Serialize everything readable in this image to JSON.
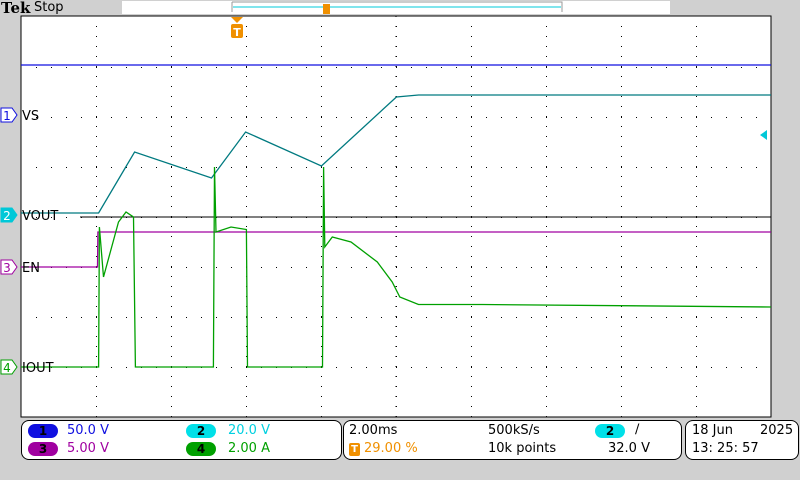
{
  "header": {
    "brand": "Tek",
    "status": "Stop"
  },
  "colors": {
    "ch1": "#1010e0",
    "ch2": "#00c8d8",
    "ch2_trace": "#007a80",
    "ch3": "#a000a0",
    "ch4": "#00a000",
    "trigger": "#f09000"
  },
  "channels": [
    {
      "num": "1",
      "label": "VS",
      "scale": "50.0 V"
    },
    {
      "num": "2",
      "label": "VOUT",
      "scale": "20.0 V"
    },
    {
      "num": "3",
      "label": "EN",
      "scale": "5.00 V"
    },
    {
      "num": "4",
      "label": "IOUT",
      "scale": "2.00 A"
    }
  ],
  "timebase": {
    "scale": "2.00ms",
    "trigger_position": "29.00 %",
    "sample_rate": "500kS/s",
    "record_length": "10k points"
  },
  "trigger": {
    "source": "2",
    "slope_icon": "rising-edge",
    "slope_glyph": "∕",
    "level": "32.0 V",
    "marker": "T"
  },
  "datetime": {
    "date": "18 Jun",
    "year": "2025",
    "time": "13: 25: 57"
  },
  "chart_data": {
    "type": "line",
    "x_unit": "ms",
    "xlim": [
      -5.8,
      14.2
    ],
    "divisions": {
      "horizontal": 10,
      "vertical": 8
    },
    "grid": true,
    "series": [
      {
        "name": "VS",
        "unit": "V",
        "points": [
          [
            -5.8,
            50
          ],
          [
            14.2,
            50
          ]
        ]
      },
      {
        "name": "VOUT",
        "unit": "V",
        "points": [
          [
            -5.8,
            0.8
          ],
          [
            -3.73,
            0.8
          ],
          [
            -2.77,
            25.2
          ],
          [
            -0.72,
            14.8
          ],
          [
            0.19,
            33.2
          ],
          [
            2.21,
            19.6
          ],
          [
            4.21,
            47.2
          ],
          [
            4.8,
            48
          ],
          [
            14.2,
            48
          ]
        ]
      },
      {
        "name": "EN",
        "unit": "V",
        "points": [
          [
            -5.8,
            0
          ],
          [
            -3.76,
            0
          ],
          [
            -3.75,
            3.5
          ],
          [
            14.2,
            3.5
          ]
        ]
      },
      {
        "name": "IOUT",
        "unit": "A",
        "points": [
          [
            -5.8,
            0
          ],
          [
            -3.73,
            0
          ],
          [
            -3.71,
            5.6
          ],
          [
            -3.6,
            3.6
          ],
          [
            -3.2,
            5.8
          ],
          [
            -3.0,
            6.2
          ],
          [
            -2.8,
            6.0
          ],
          [
            -2.75,
            0
          ],
          [
            -0.67,
            0
          ],
          [
            -0.64,
            8.0
          ],
          [
            -0.6,
            5.4
          ],
          [
            -0.2,
            5.6
          ],
          [
            0.21,
            5.5
          ],
          [
            0.24,
            0
          ],
          [
            2.24,
            0
          ],
          [
            2.27,
            8.0
          ],
          [
            2.3,
            4.8
          ],
          [
            2.5,
            5.2
          ],
          [
            3.0,
            5.0
          ],
          [
            3.7,
            4.2
          ],
          [
            4.1,
            3.4
          ],
          [
            4.3,
            2.8
          ],
          [
            4.8,
            2.5
          ],
          [
            6.5,
            2.5
          ],
          [
            14.2,
            2.4
          ]
        ]
      }
    ]
  }
}
